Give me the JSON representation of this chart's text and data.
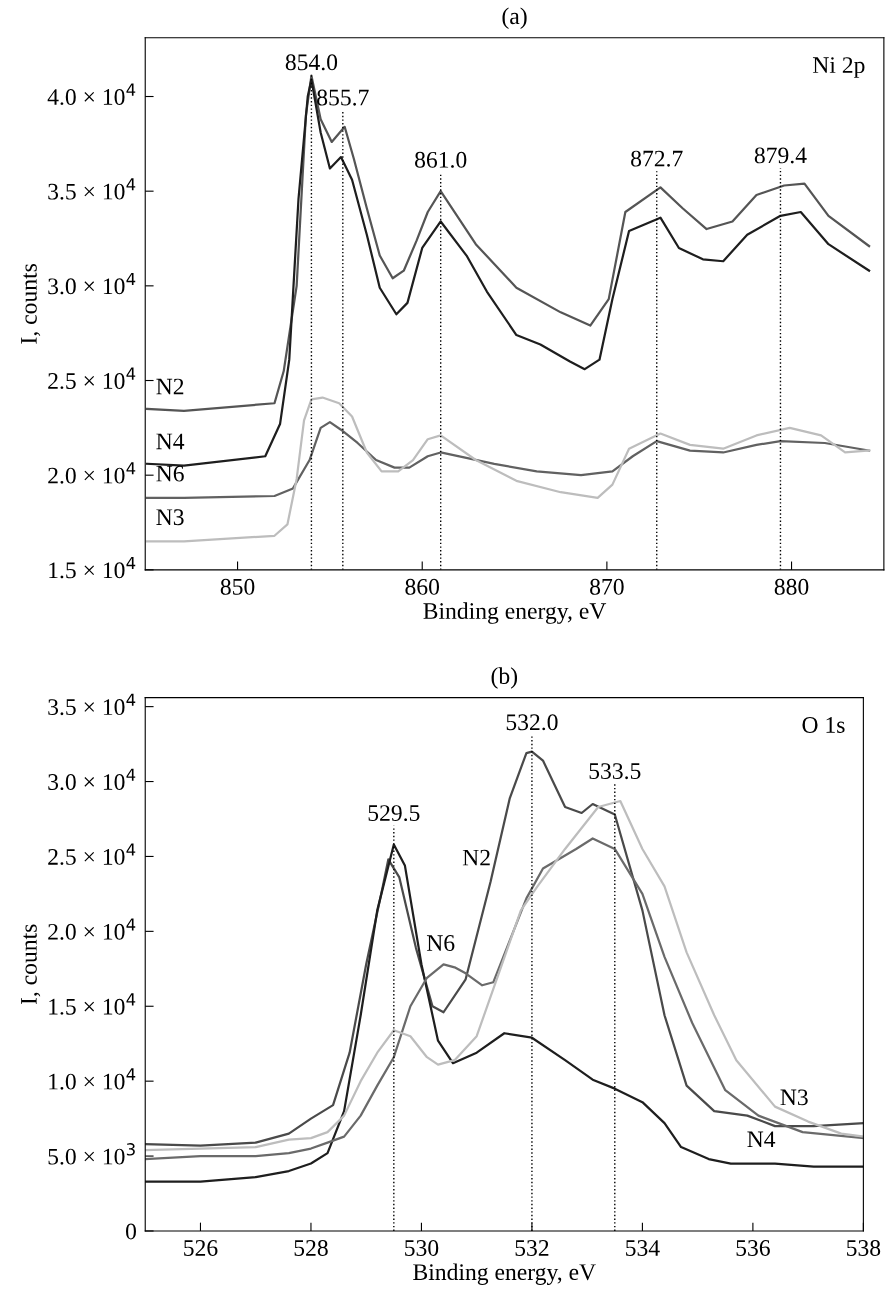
{
  "chart_data": [
    {
      "type": "line",
      "title": "(a)",
      "xlabel": "Binding energy, eV",
      "ylabel": "I, counts",
      "xlim": [
        845,
        885
      ],
      "xticks": [
        850,
        860,
        870,
        880
      ],
      "ylim": [
        15000,
        43100
      ],
      "yticks": [
        {
          "value": 15000,
          "label": "1.5 × 10$^{4}$"
        },
        {
          "value": 20000,
          "label": "2.0 × 10$^{4}$"
        },
        {
          "value": 25000,
          "label": "2.5 × 10$^{4}$"
        },
        {
          "value": 30000,
          "label": "3.0 × 10$^{4}$"
        },
        {
          "value": 35000,
          "label": "3.5 × 10$^{4}$"
        },
        {
          "value": 40000,
          "label": "4.0 × 10$^{4}$"
        }
      ],
      "grid": false,
      "marker": "none",
      "line_style": "solid",
      "series": [
        {
          "color": "#555555",
          "x": [
            845.1,
            847.1,
            852,
            852.5,
            853.2,
            853.7,
            854.0,
            854.5,
            855.1,
            855.8,
            856.3,
            857,
            857.7,
            858.4,
            859,
            859.7,
            860.3,
            861,
            862.9,
            865.1,
            867.5,
            869.1,
            870.1,
            871,
            872.9,
            874.1,
            875.4,
            876.8,
            878.1,
            879.6,
            880.7,
            882,
            884.2
          ],
          "values": [
            23500,
            23400,
            23800,
            25500,
            30000,
            39000,
            41100,
            38800,
            37600,
            38400,
            36700,
            34100,
            31600,
            30400,
            30800,
            32400,
            33900,
            35000,
            32200,
            29900,
            28600,
            27900,
            29300,
            33900,
            35200,
            34100,
            33000,
            33400,
            34800,
            35300,
            35400,
            33700,
            32100
          ]
        },
        {
          "color": "#1e1e1e",
          "x": [
            845.1,
            847.1,
            851.5,
            852.3,
            852.8,
            853.3,
            853.8,
            854.0,
            854.5,
            855.0,
            855.6,
            856.2,
            857,
            857.7,
            858.6,
            859.2,
            860,
            861,
            862.4,
            863.5,
            865.1,
            866.4,
            868,
            868.8,
            869.6,
            870.3,
            871.2,
            872.9,
            873.9,
            875.2,
            876.3,
            877.6,
            879.4,
            880.5,
            882,
            884.2
          ],
          "values": [
            20600,
            20500,
            21000,
            22700,
            26100,
            34600,
            40000,
            40900,
            38100,
            36200,
            36800,
            35600,
            32700,
            29900,
            28500,
            29100,
            32000,
            33400,
            31600,
            29700,
            27400,
            26900,
            26000,
            25600,
            26100,
            29300,
            32900,
            33600,
            32000,
            31400,
            31300,
            32700,
            33700,
            33900,
            32200,
            30800
          ]
        },
        {
          "color": "#616161",
          "x": [
            845.1,
            847.1,
            852,
            853,
            853.9,
            854.5,
            855,
            855.6,
            856.5,
            857.5,
            858.5,
            859.3,
            860.3,
            861,
            863.9,
            866.2,
            868.6,
            870.3,
            871.4,
            872.7,
            874.5,
            876.3,
            878.1,
            879.4,
            881.8,
            884.2
          ],
          "values": [
            18800,
            18800,
            18900,
            19300,
            20800,
            22500,
            22800,
            22400,
            21700,
            20800,
            20400,
            20400,
            21000,
            21200,
            20600,
            20200,
            20000,
            20200,
            21000,
            21800,
            21300,
            21200,
            21600,
            21800,
            21700,
            21300
          ]
        },
        {
          "color": "#bdbdbd",
          "x": [
            845.1,
            847.1,
            852,
            852.7,
            853.2,
            853.6,
            854,
            854.6,
            855.5,
            856.2,
            857,
            857.8,
            858.7,
            859.5,
            860.3,
            861,
            862.9,
            865.1,
            867.5,
            869.5,
            870.3,
            871.2,
            872.9,
            874.5,
            876.3,
            878.1,
            879.9,
            881.6,
            882.9,
            884.2
          ],
          "values": [
            16500,
            16500,
            16800,
            17400,
            19800,
            22900,
            24000,
            24100,
            23800,
            23100,
            21200,
            20200,
            20200,
            20800,
            21900,
            22100,
            20800,
            19700,
            19100,
            18800,
            19500,
            21400,
            22200,
            21600,
            21400,
            22100,
            22500,
            22100,
            21200,
            21300
          ]
        }
      ],
      "ref_lines": [
        {
          "axis": "x",
          "value": 854.0,
          "label": "854.0",
          "line_style": "dotted",
          "color": "#000000"
        },
        {
          "axis": "x",
          "value": 855.7,
          "label": "855.7",
          "line_style": "dotted",
          "color": "#000000"
        },
        {
          "axis": "x",
          "value": 861.0,
          "label": "861.0",
          "line_style": "dotted",
          "color": "#000000"
        },
        {
          "axis": "x",
          "value": 872.7,
          "label": "872.7",
          "line_style": "dotted",
          "color": "#000000"
        },
        {
          "axis": "x",
          "value": 879.4,
          "label": "879.4",
          "line_style": "dotted",
          "color": "#000000"
        }
      ],
      "annotations": [
        "Ni 2p",
        {
          "text": "N2",
          "x": 847.1,
          "y": 23400
        },
        {
          "text": "N4",
          "x": 847.1,
          "y": 20500
        },
        {
          "text": "N6",
          "x": 847.1,
          "y": 18800
        },
        {
          "text": "N3",
          "x": 847.1,
          "y": 16500
        }
      ]
    },
    {
      "type": "line",
      "title": "(b)",
      "xlabel": "Binding energy, eV",
      "ylabel": "I, counts",
      "xlim": [
        525,
        538
      ],
      "xticks": [
        526,
        528,
        530,
        532,
        534,
        536,
        538
      ],
      "ylim": [
        0,
        35600
      ],
      "yticks": [
        0,
        {
          "value": 5000,
          "label": "5.0 × 10$^{3}$"
        },
        {
          "value": 10000,
          "label": "1.0 × 10$^{4}$"
        },
        {
          "value": 15000,
          "label": "1.5 × 10$^{4}$"
        },
        {
          "value": 20000,
          "label": "2.0 × 10$^{4}$"
        },
        {
          "value": 25000,
          "label": "2.5 × 10$^{4}$"
        },
        {
          "value": 30000,
          "label": "3.0 × 10$^{4}$"
        },
        {
          "value": 35000,
          "label": "3.5 × 10$^{4}$"
        }
      ],
      "grid": false,
      "marker": "none",
      "line_style": "solid",
      "series": [
        {
          "color": "#4a4a4a",
          "x": [
            525,
            526,
            527,
            527.6,
            528,
            528.4,
            528.7,
            529.0,
            529.3,
            529.4,
            529.6,
            529.9,
            530.2,
            530.4,
            530.8,
            531.25,
            531.6,
            531.9,
            532.0,
            532.2,
            532.6,
            532.9,
            533.1,
            533.5,
            534,
            534.4,
            534.8,
            535.3,
            535.9,
            536.4,
            537.1,
            538
          ],
          "values": [
            5800,
            5700,
            5900,
            6500,
            7500,
            8400,
            11900,
            17800,
            23000,
            24800,
            23600,
            18900,
            15000,
            14600,
            16800,
            23300,
            28900,
            31900,
            32000,
            31400,
            28300,
            27900,
            28500,
            27800,
            21400,
            14400,
            9700,
            8000,
            7700,
            7000,
            7000,
            7200
          ]
        },
        {
          "color": "#1e1e1e",
          "x": [
            525,
            526,
            527,
            527.6,
            528,
            528.3,
            528.6,
            528.9,
            529.2,
            529.5,
            529.7,
            530.0,
            530.3,
            530.57,
            531.0,
            531.5,
            532,
            532.6,
            533.1,
            533.5,
            534,
            534.4,
            534.7,
            535.2,
            535.6,
            536.4,
            537.1,
            538
          ],
          "values": [
            3300,
            3300,
            3600,
            4000,
            4500,
            5200,
            8000,
            14400,
            21400,
            25800,
            24400,
            17800,
            12700,
            11200,
            11900,
            13200,
            12900,
            11400,
            10100,
            9500,
            8600,
            7200,
            5600,
            4800,
            4500,
            4500,
            4300,
            4300
          ]
        },
        {
          "color": "#6a6a6a",
          "x": [
            525,
            526,
            527,
            527.6,
            528,
            528.3,
            528.6,
            528.9,
            529.2,
            529.5,
            529.8,
            530.1,
            530.4,
            530.6,
            530.8,
            531.1,
            531.3,
            531.6,
            531.9,
            532.2,
            532.8,
            533.1,
            533.5,
            534,
            534.4,
            534.9,
            535.5,
            536.1,
            536.9,
            538
          ],
          "values": [
            4800,
            5000,
            5000,
            5200,
            5500,
            5900,
            6300,
            7700,
            9700,
            11600,
            15000,
            16900,
            17800,
            17600,
            17200,
            16400,
            16600,
            19400,
            22200,
            24200,
            25500,
            26200,
            25500,
            22500,
            18300,
            13900,
            9400,
            7700,
            6600,
            6200
          ]
        },
        {
          "color": "#bdbdbd",
          "x": [
            525,
            526,
            527,
            527.6,
            528,
            528.3,
            528.6,
            528.9,
            529.2,
            529.5,
            529.8,
            530.1,
            530.3,
            530.6,
            531.0,
            531.4,
            531.8,
            532.1,
            532.6,
            533.2,
            533.6,
            534,
            534.4,
            534.8,
            535.3,
            535.7,
            536.4,
            537,
            537.6,
            538
          ],
          "values": [
            5400,
            5500,
            5600,
            6100,
            6200,
            6600,
            7700,
            10000,
            11900,
            13400,
            13000,
            11600,
            11100,
            11400,
            13000,
            17200,
            21400,
            23000,
            25500,
            28300,
            28700,
            25500,
            23000,
            18600,
            14400,
            11400,
            8300,
            7300,
            6500,
            6300
          ]
        }
      ],
      "ref_lines": [
        {
          "axis": "x",
          "value": 529.5,
          "label": "529.5",
          "line_style": "dotted",
          "color": "#000000"
        },
        {
          "axis": "x",
          "value": 532.0,
          "label": "532.0",
          "line_style": "dotted",
          "color": "#000000"
        },
        {
          "axis": "x",
          "value": 533.5,
          "label": "533.5",
          "line_style": "dotted",
          "color": "#000000"
        }
      ],
      "annotations": [
        "O 1s",
        {
          "text": "N2",
          "x": 531.25,
          "y": 23300
        },
        {
          "text": "N6",
          "x": 530.6,
          "y": 17600
        },
        {
          "text": "N3",
          "x": 537,
          "y": 7300
        },
        {
          "text": "N4",
          "x": 536.4,
          "y": 4500
        }
      ]
    }
  ]
}
